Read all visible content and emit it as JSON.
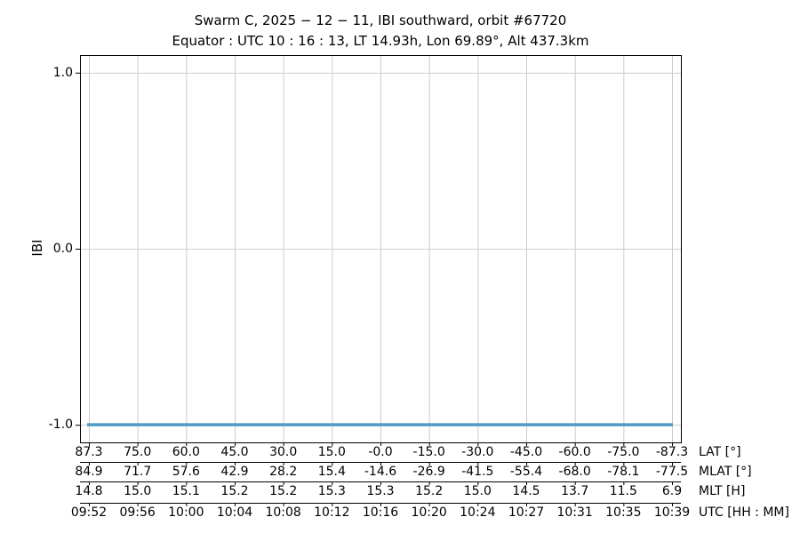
{
  "chart_data": {
    "type": "line",
    "title": "Swarm C, 2025 − 12 − 11, IBI southward, orbit #67720",
    "subtitle": "Equator : UTC 10 : 16 : 13, LT 14.93h, Lon 69.89°, Alt 437.3km",
    "ylabel": "IBI",
    "ylim": [
      -1.1,
      1.1
    ],
    "yticks": [
      1.0,
      0.0,
      -1.0
    ],
    "ytick_labels": [
      "1.0",
      "0.0",
      "-1.0"
    ],
    "grid": true,
    "legend_position": "none",
    "series": [
      {
        "name": "IBI",
        "color": "#4d9ac8",
        "x": [
          "09:52",
          "09:56",
          "10:00",
          "10:04",
          "10:08",
          "10:12",
          "10:16",
          "10:20",
          "10:24",
          "10:27",
          "10:31",
          "10:35",
          "10:39"
        ],
        "values": [
          -1.0,
          -1.0,
          -1.0,
          -1.0,
          -1.0,
          -1.0,
          -1.0,
          -1.0,
          -1.0,
          -1.0,
          -1.0,
          -1.0,
          -1.0
        ]
      }
    ],
    "x_axes": [
      {
        "label": "LAT [°]",
        "ticks": [
          "87.3",
          "75.0",
          "60.0",
          "45.0",
          "30.0",
          "15.0",
          "-0.0",
          "-15.0",
          "-30.0",
          "-45.0",
          "-60.0",
          "-75.0",
          "-87.3"
        ]
      },
      {
        "label": "MLAT [°]",
        "ticks": [
          "84.9",
          "71.7",
          "57.6",
          "42.9",
          "28.2",
          "15.4",
          "-14.6",
          "-26.9",
          "-41.5",
          "-55.4",
          "-68.0",
          "-78.1",
          "-77.5"
        ]
      },
      {
        "label": "MLT [H]",
        "ticks": [
          "14.8",
          "15.0",
          "15.1",
          "15.2",
          "15.2",
          "15.3",
          "15.3",
          "15.2",
          "15.0",
          "14.5",
          "13.7",
          "11.5",
          "6.9"
        ]
      },
      {
        "label": "UTC [HH : MM]",
        "ticks": [
          "09:52",
          "09:56",
          "10:00",
          "10:04",
          "10:08",
          "10:12",
          "10:16",
          "10:20",
          "10:24",
          "10:27",
          "10:31",
          "10:35",
          "10:39"
        ]
      }
    ],
    "colors": {
      "grid": "#cccccc",
      "spine": "#000000",
      "text": "#000000",
      "line": "#4d9ac8",
      "background": "#ffffff"
    }
  }
}
